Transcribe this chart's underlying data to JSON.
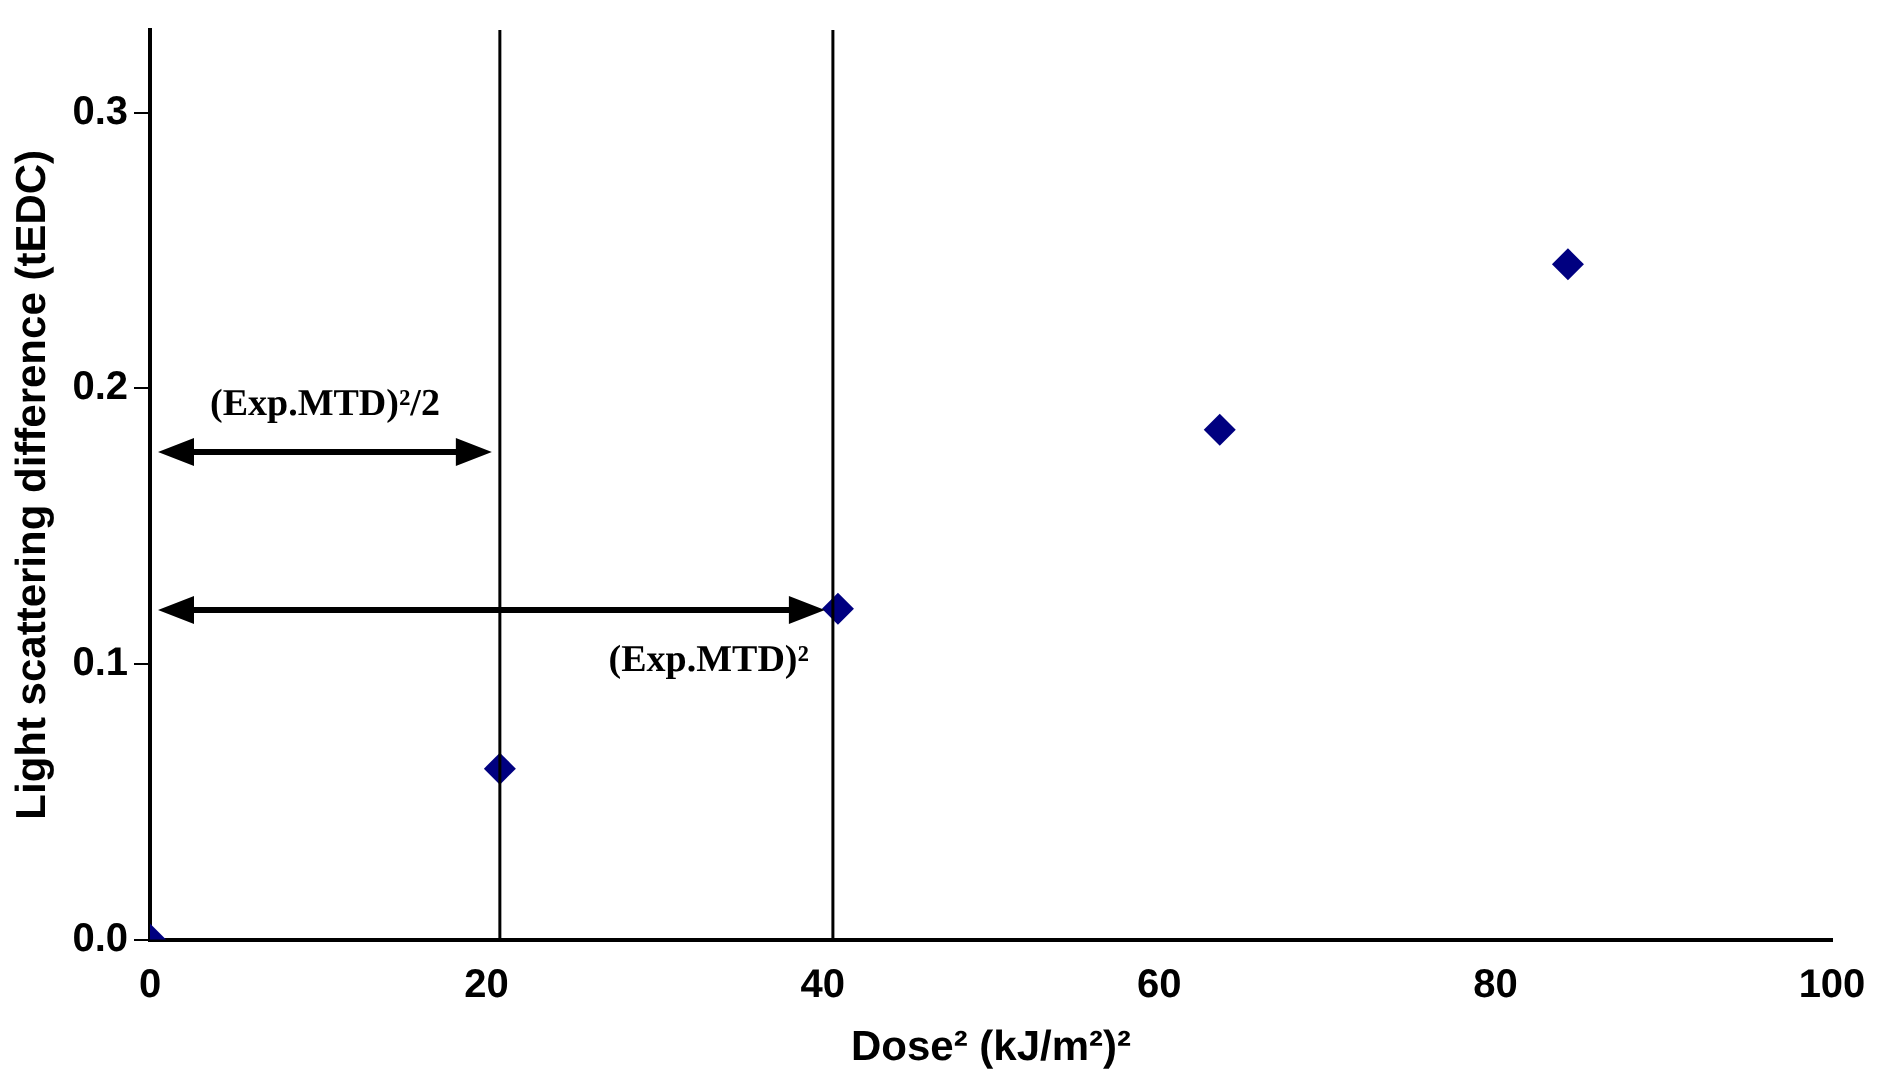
{
  "chart_data": {
    "type": "scatter",
    "xlabel": "Dose² (kJ/m²)²",
    "ylabel": "Light scattering difference (tEDC)",
    "x": [
      0,
      20.8,
      40.9,
      63.6,
      84.3
    ],
    "series": [
      {
        "color": "#000080",
        "values": [
          0,
          0.062,
          0.12,
          0.185,
          0.245
        ]
      }
    ],
    "xlim": [
      0,
      100
    ],
    "xticks": [
      0,
      20,
      40,
      60,
      80,
      100
    ],
    "ylim": [
      0,
      0.33
    ],
    "yticks": [
      {
        "value": 0,
        "label": "0.0"
      },
      {
        "value": 0.1,
        "label": "0.1"
      },
      {
        "value": 0.2,
        "label": "0.2"
      },
      {
        "value": 0.3,
        "label": "0.3"
      }
    ],
    "ref_lines": [
      {
        "axis": "x",
        "value": 20.8,
        "color": "#000000",
        "label": "(Exp.MTD)²/2"
      },
      {
        "axis": "x",
        "value": 40.6,
        "color": "#000000",
        "label": "(Exp.MTD)²"
      }
    ],
    "marker": "diamond",
    "grid": false,
    "legend": false
  }
}
